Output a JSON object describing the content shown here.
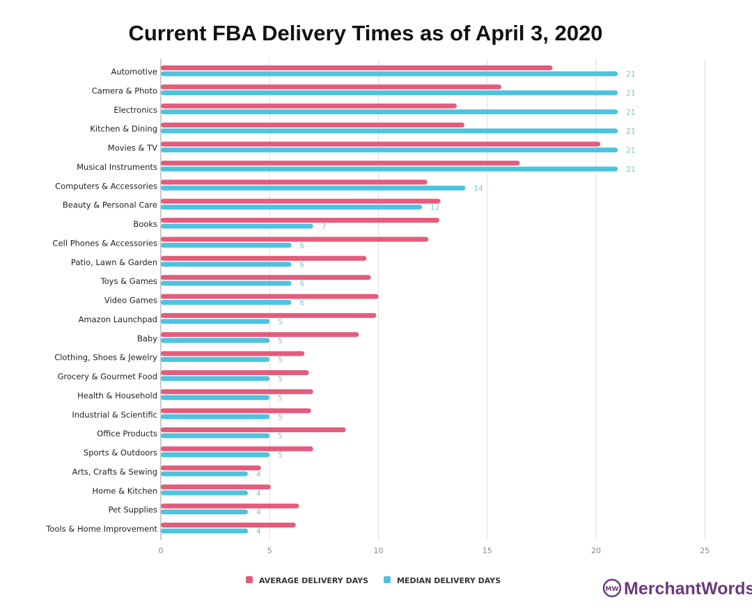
{
  "chart_data": {
    "type": "bar",
    "orientation": "horizontal",
    "title": "Current FBA Delivery Times as of April 3, 2020",
    "xlabel": "",
    "ylabel": "",
    "xlim": [
      0,
      25
    ],
    "xticks": [
      0,
      5,
      10,
      15,
      20,
      25
    ],
    "grid": true,
    "legend_position": "bottom",
    "categories": [
      "Automotive",
      "Camera & Photo",
      "Electronics",
      "Kitchen & Dining",
      "Movies & TV",
      "Musical Instruments",
      "Computers & Accessories",
      "Beauty & Personal Care",
      "Books",
      "Cell Phones & Accessories",
      "Patio, Lawn & Garden",
      "Toys & Games",
      "Video Games",
      "Amazon Launchpad",
      "Baby",
      "Clothing, Shoes & Jewelry",
      "Grocery & Gourmet Food",
      "Health & Household",
      "Industrial & Scientific",
      "Office Products",
      "Sports & Outdoors",
      "Arts, Crafts & Sewing",
      "Home & Kitchen",
      "Pet Supplies",
      "Tools & Home Improvement"
    ],
    "series": [
      {
        "name": "AVERAGE DELIVERY DAYS",
        "color": "#e45c7c",
        "values": [
          18.0,
          15.65,
          13.6,
          13.95,
          20.2,
          16.5,
          12.25,
          12.85,
          12.8,
          12.3,
          9.45,
          9.65,
          10.0,
          9.9,
          9.1,
          6.6,
          6.8,
          7.0,
          6.9,
          8.5,
          7.0,
          4.6,
          5.05,
          6.35,
          6.2
        ]
      },
      {
        "name": "MEDIAN DELIVERY DAYS",
        "color": "#4ec3e0",
        "labeled": true,
        "values": [
          21,
          21,
          21,
          21,
          21,
          21,
          14,
          12,
          7,
          6,
          6,
          6,
          6,
          5,
          5,
          5,
          5,
          5,
          5,
          5,
          5,
          4,
          4,
          4,
          4
        ]
      }
    ]
  },
  "logo": {
    "text": "MerchantWords",
    "mark": "MW"
  }
}
